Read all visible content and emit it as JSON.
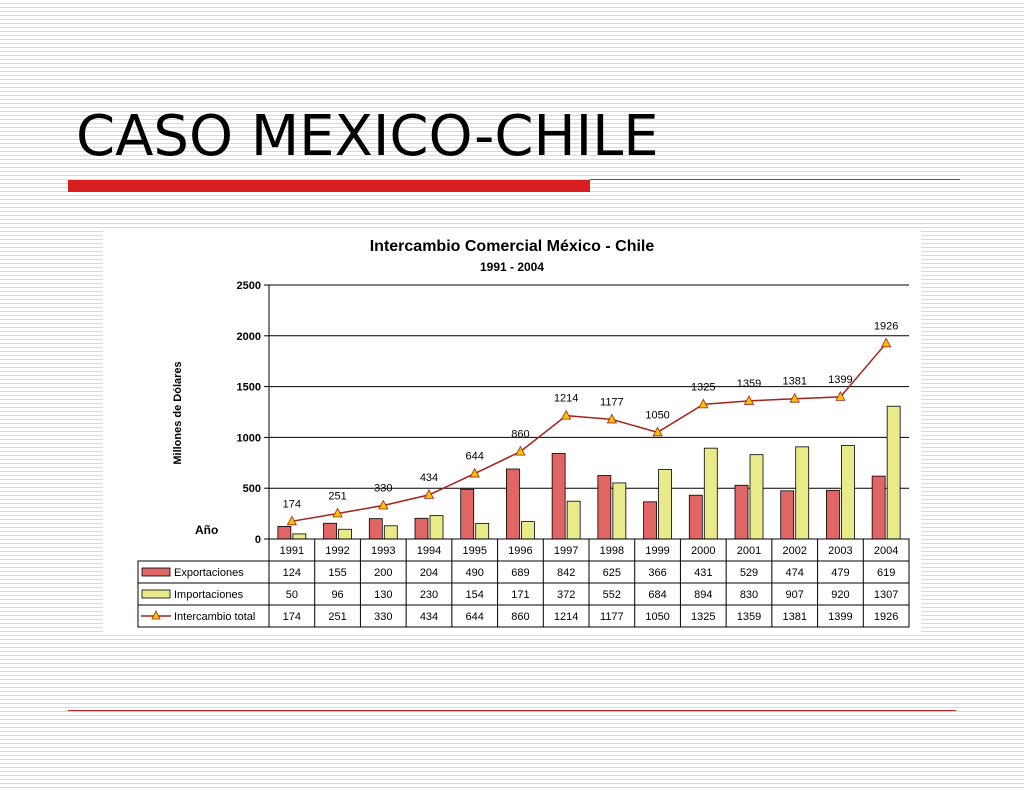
{
  "slide": {
    "title": "CASO MEXICO-CHILE"
  },
  "colors": {
    "accent_red": "#d81e1e",
    "export_bar": "#e06666",
    "import_bar": "#e9eb8a",
    "line": "#a5231b",
    "marker": "#f4c400"
  },
  "chart_data": {
    "type": "bar",
    "title": "Intercambio Comercial México - Chile",
    "subtitle": "1991 - 2004",
    "ylabel": "Millones de Dólares",
    "xlabel": "Año",
    "ylim": [
      0,
      2500
    ],
    "yticks": [
      0,
      500,
      1000,
      1500,
      2000,
      2500
    ],
    "grid": true,
    "categories": [
      "1991",
      "1992",
      "1993",
      "1994",
      "1995",
      "1996",
      "1997",
      "1998",
      "1999",
      "2000",
      "2001",
      "2002",
      "2003",
      "2004"
    ],
    "series": [
      {
        "name": "Exportaciones",
        "kind": "bar",
        "color": "#e06666",
        "values": [
          124,
          155,
          200,
          204,
          490,
          689,
          842,
          625,
          366,
          431,
          529,
          474,
          479,
          619
        ]
      },
      {
        "name": "Importaciones",
        "kind": "bar",
        "color": "#e9eb8a",
        "values": [
          50,
          96,
          130,
          230,
          154,
          171,
          372,
          552,
          684,
          894,
          830,
          907,
          920,
          1307
        ]
      },
      {
        "name": "Intercambio total",
        "kind": "line",
        "color": "#a5231b",
        "marker_color": "#f4c400",
        "values": [
          174,
          251,
          330,
          434,
          644,
          860,
          1214,
          1177,
          1050,
          1325,
          1359,
          1381,
          1399,
          1926
        ]
      }
    ],
    "legend_placement": "data-table"
  }
}
